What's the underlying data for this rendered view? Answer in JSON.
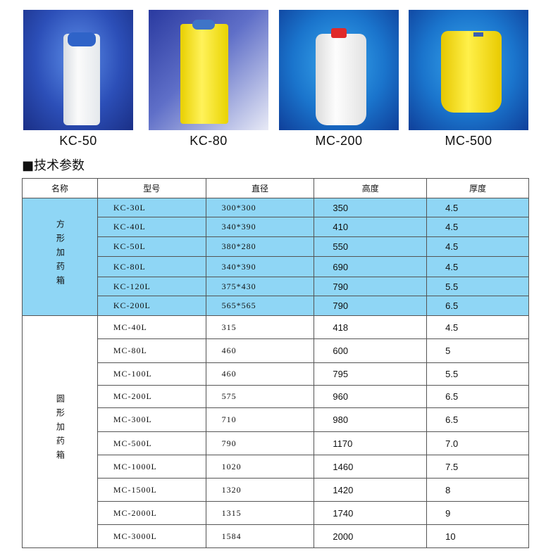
{
  "products": [
    {
      "name": "KC-50",
      "image": "white square tank with blue cap"
    },
    {
      "name": "KC-80",
      "image": "yellow square tank with blue cap"
    },
    {
      "name": "MC-200",
      "image": "white round tank with red cap"
    },
    {
      "name": "MC-500",
      "image": "yellow round tank"
    }
  ],
  "section_title": "■技术参数",
  "table": {
    "headers": [
      "名称",
      "型号",
      "直径",
      "高度",
      "厚度"
    ],
    "groups": [
      {
        "category": "方形加药箱",
        "color": "#8fd6f5",
        "rows": [
          [
            "KC-30L",
            "300*300",
            "350",
            "4.5"
          ],
          [
            "KC-40L",
            "340*390",
            "410",
            "4.5"
          ],
          [
            "KC-50L",
            "380*280",
            "550",
            "4.5"
          ],
          [
            "KC-80L",
            "340*390",
            "690",
            "4.5"
          ],
          [
            "KC-120L",
            "375*430",
            "790",
            "5.5"
          ],
          [
            "KC-200L",
            "565*565",
            "790",
            "6.5"
          ]
        ]
      },
      {
        "category": "圆形加药箱",
        "color": "#ffffff",
        "rows": [
          [
            "MC-40L",
            "315",
            "418",
            "4.5"
          ],
          [
            "MC-80L",
            "460",
            "600",
            "5"
          ],
          [
            "MC-100L",
            "460",
            "795",
            "5.5"
          ],
          [
            "MC-200L",
            "575",
            "960",
            "6.5"
          ],
          [
            "MC-300L",
            "710",
            "980",
            "6.5"
          ],
          [
            "MC-500L",
            "790",
            "1170",
            "7.0"
          ],
          [
            "MC-1000L",
            "1020",
            "1460",
            "7.5"
          ],
          [
            "MC-1500L",
            "1320",
            "1420",
            "8"
          ],
          [
            "MC-2000L",
            "1315",
            "1740",
            "9"
          ],
          [
            "MC-3000L",
            "1584",
            "2000",
            "10"
          ]
        ]
      }
    ]
  }
}
